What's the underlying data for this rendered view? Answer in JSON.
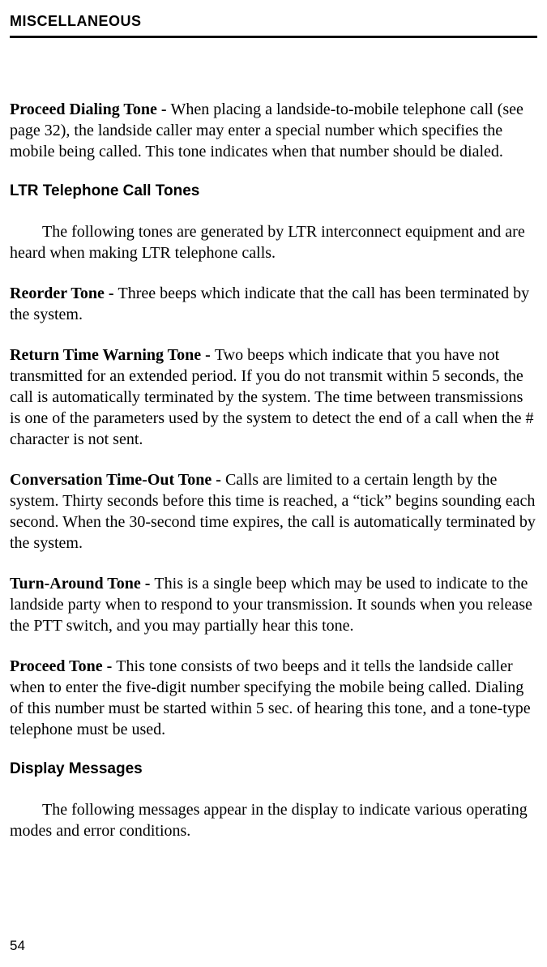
{
  "header": "MISCELLANEOUS",
  "p1_bold": "Proceed Dialing Tone - ",
  "p1_text": "When placing a landside-to-mobile telephone call (see page 32), the landside caller may enter a special number which specifies the mobile being called. This tone indicates when that number should be dialed.",
  "h1": "LTR Telephone Call Tones",
  "p2_text": "The following tones are generated by LTR interconnect equipment and are heard when making LTR telephone calls.",
  "p3_bold": "Reorder Tone - ",
  "p3_text": "Three beeps which indicate that the call has been termi­nated by the system.",
  "p4_bold": "Return Time Warning Tone - ",
  "p4_text": "Two beeps which indicate that you have not transmitted for an extended period. If you do not transmit within 5 seconds, the call is automatically terminated by the system. The time between transmissions is one of the parameters used by the system to detect the end of a call when the # character is not sent.",
  "p5_bold": "Conversation Time-Out Tone - ",
  "p5_text": "Calls are limited to a certain length by the system. Thirty seconds before this time is reached, a “tick” begins sounding each second. When the 30-second time expires, the call is auto­matically terminated by the system.",
  "p6_bold": "Turn-Around Tone - ",
  "p6_text": "This is a single beep which may be used to indicate to the landside party when to respond to your transmission. It sounds when you release the PTT switch, and you may partially hear this tone.",
  "p7_bold": "Proceed Tone - ",
  "p7_text": "This tone consists of two beeps and it tells the landside caller when to enter the five-digit number specifying the mobile being called. Dialing of this number must be started within 5 sec. of hearing this tone, and a tone-type telephone must be used.",
  "h2": "Display Messages",
  "p8_text": "The following messages appear in the display to indicate various operating modes and error conditions.",
  "page_number": "54"
}
